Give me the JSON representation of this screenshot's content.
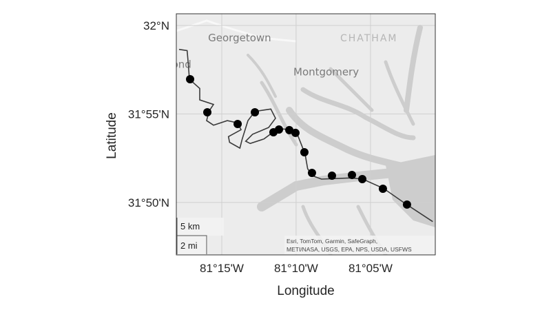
{
  "map": {
    "basemap": "light gray canvas",
    "colors": {
      "land": "#ececec",
      "water": "#c9c9c9",
      "track": "#4a4a4a",
      "marker": "#000000",
      "grid": "#cfcfcf"
    },
    "xlabel": "Longitude",
    "ylabel": "Latitude",
    "lon_ticks": [
      {
        "value": -81.25,
        "label": "81°15'W"
      },
      {
        "value": -81.1667,
        "label": "81°10'W"
      },
      {
        "value": -81.0833,
        "label": "81°05'W"
      }
    ],
    "lat_ticks": [
      {
        "value": 32.0,
        "label": "32°N"
      },
      {
        "value": 31.9167,
        "label": "31°55'N"
      },
      {
        "value": 31.8333,
        "label": "31°50'N"
      }
    ],
    "place_labels": [
      {
        "text": "Georgetown",
        "lon": -81.23,
        "lat": 31.985
      },
      {
        "text": "CHATHAM",
        "lon": -81.085,
        "lat": 31.985
      },
      {
        "text": "Montgomery",
        "lon": -81.133,
        "lat": 31.953
      },
      {
        "text": "ond",
        "lon": -81.295,
        "lat": 31.96
      }
    ],
    "scale_bar": {
      "km_label": "5 km",
      "mi_label": "2 mi"
    },
    "attribution": [
      "Esri, TomTom, Garmin, SafeGraph,",
      "METI/NASA, USGS, EPA, NPS, USDA, USFWS"
    ],
    "track": [
      [
        -81.2979,
        31.9775
      ],
      [
        -81.2888,
        31.9764
      ],
      [
        -81.2876,
        31.9645
      ],
      [
        -81.2863,
        31.9494
      ],
      [
        -81.2747,
        31.9407
      ],
      [
        -81.2747,
        31.9299
      ],
      [
        -81.2593,
        31.9256
      ],
      [
        -81.2644,
        31.9191
      ],
      [
        -81.267,
        31.9104
      ],
      [
        -81.2593,
        31.9061
      ],
      [
        -81.2438,
        31.9104
      ],
      [
        -81.2322,
        31.9083
      ],
      [
        -81.2284,
        31.9018
      ],
      [
        -81.2425,
        31.8953
      ],
      [
        -81.2413,
        31.8899
      ],
      [
        -81.2297,
        31.8845
      ],
      [
        -81.2271,
        31.8931
      ],
      [
        -81.2207,
        31.9104
      ],
      [
        -81.2129,
        31.9191
      ],
      [
        -81.195,
        31.9213
      ],
      [
        -81.1898,
        31.9126
      ],
      [
        -81.1975,
        31.9039
      ],
      [
        -81.2155,
        31.8975
      ],
      [
        -81.2232,
        31.891
      ],
      [
        -81.2181,
        31.8888
      ],
      [
        -81.2027,
        31.8931
      ],
      [
        -81.1923,
        31.8996
      ],
      [
        -81.1846,
        31.9028
      ],
      [
        -81.173,
        31.9018
      ],
      [
        -81.1653,
        31.8975
      ],
      [
        -81.1602,
        31.8866
      ],
      [
        -81.1564,
        31.878
      ],
      [
        -81.1537,
        31.865
      ],
      [
        -81.1486,
        31.8585
      ],
      [
        -81.1383,
        31.8553
      ],
      [
        -81.1049,
        31.8564
      ],
      [
        -81.092,
        31.8553
      ],
      [
        -81.0688,
        31.8466
      ],
      [
        -81.0431,
        31.8315
      ],
      [
        -81.0135,
        31.8152
      ]
    ],
    "points": [
      [
        -81.2855,
        31.9494
      ],
      [
        -81.2662,
        31.9182
      ],
      [
        -81.2322,
        31.9072
      ],
      [
        -81.2129,
        31.9182
      ],
      [
        -81.1921,
        31.8994
      ],
      [
        -81.1859,
        31.902
      ],
      [
        -81.1743,
        31.9014
      ],
      [
        -81.1674,
        31.8988
      ],
      [
        -81.1574,
        31.8806
      ],
      [
        -81.1489,
        31.8611
      ],
      [
        -81.1265,
        31.8585
      ],
      [
        -81.1041,
        31.8592
      ],
      [
        -81.0925,
        31.8553
      ],
      [
        -81.0694,
        31.8462
      ],
      [
        -81.0424,
        31.8313
      ]
    ]
  }
}
